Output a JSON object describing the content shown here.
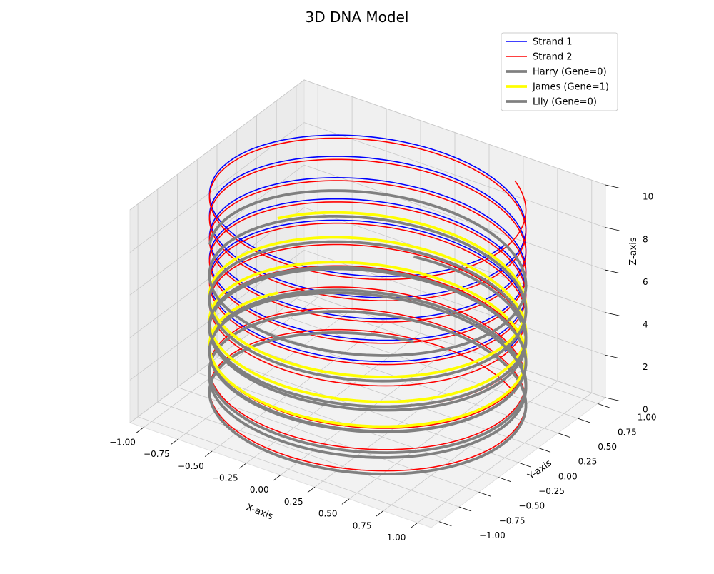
{
  "chart_data": {
    "type": "line3d",
    "title": "3D DNA Model",
    "xlabel": "X-axis",
    "ylabel": "Y-axis",
    "zlabel": "Z-axis",
    "xlim": [
      -1.1,
      1.1
    ],
    "ylim": [
      -1.1,
      1.1
    ],
    "zlim": [
      0,
      10
    ],
    "xticks": [
      "−1.00",
      "−0.75",
      "−0.50",
      "−0.25",
      "0.00",
      "0.25",
      "0.50",
      "0.75",
      "1.00"
    ],
    "yticks": [
      "−1.00",
      "−0.75",
      "−0.50",
      "−0.25",
      "0.00",
      "0.25",
      "0.50",
      "0.75",
      "1.00"
    ],
    "zticks": [
      "0",
      "2",
      "4",
      "6",
      "8",
      "10"
    ],
    "grid": true,
    "legend_position": "top-right",
    "series": [
      {
        "name": "Strand 1",
        "color": "#0000ff",
        "z_range": [
          5,
          10
        ],
        "turns": 5,
        "linewidth": "thin"
      },
      {
        "name": "Strand 2",
        "color": "#ff0000",
        "z_range": [
          0,
          10
        ],
        "turns": 10,
        "linewidth": "thin"
      },
      {
        "name": "Harry (Gene=0)",
        "color": "#808080",
        "z_range": [
          0,
          4
        ],
        "turns": 4,
        "linewidth": "thick"
      },
      {
        "name": "James (Gene=1)",
        "color": "#ffff00",
        "z_range": [
          2.3,
          5.8
        ],
        "turns": 3,
        "linewidth": "thick"
      },
      {
        "name": "Lily (Gene=0)",
        "color": "#808080",
        "z_range": [
          1,
          7
        ],
        "turns": 5,
        "linewidth": "thick"
      }
    ]
  }
}
